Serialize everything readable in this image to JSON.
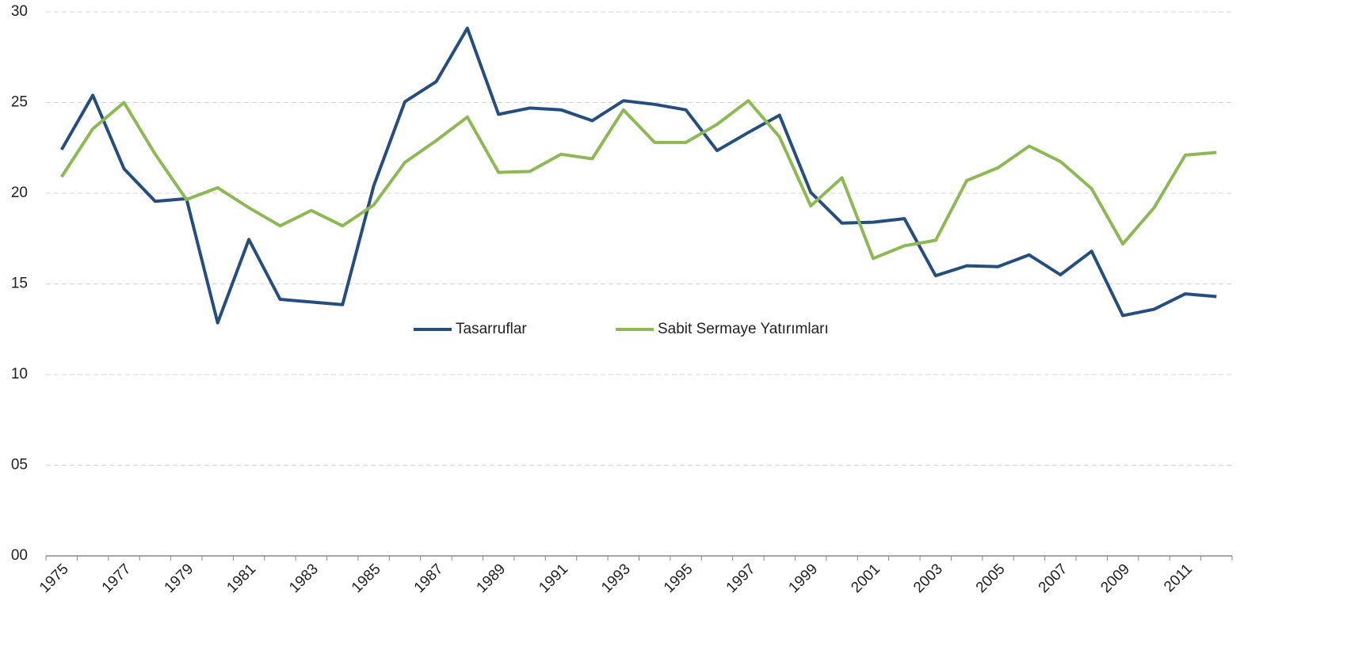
{
  "chart_data": {
    "type": "line",
    "categories": [
      "1975",
      null,
      "1977",
      null,
      "1979",
      null,
      "1981",
      null,
      "1983",
      null,
      "1985",
      null,
      "1987",
      null,
      "1989",
      null,
      "1991",
      null,
      "1993",
      null,
      "1995",
      null,
      "1997",
      null,
      "1999",
      null,
      "2001",
      null,
      "2003",
      null,
      "2005",
      null,
      "2007",
      null,
      "2009",
      null,
      "2011",
      null
    ],
    "series": [
      {
        "name": "Tasarruflar",
        "color": "#254e7f",
        "values": [
          22.4,
          25.4,
          21.35,
          19.55,
          19.7,
          12.85,
          17.45,
          14.15,
          14.0,
          13.85,
          20.4,
          25.05,
          26.15,
          29.1,
          24.35,
          24.7,
          24.6,
          24.0,
          25.1,
          24.9,
          24.6,
          22.35,
          23.35,
          24.3,
          20.05,
          18.35,
          18.4,
          18.6,
          15.45,
          16.0,
          15.95,
          16.6,
          15.5,
          16.8,
          13.25,
          13.6,
          14.45,
          14.3
        ]
      },
      {
        "name": "Sabit Sermaye Yatırımları",
        "color": "#8db955",
        "values": [
          20.9,
          23.55,
          25.0,
          22.15,
          19.65,
          20.3,
          19.2,
          18.2,
          19.05,
          18.2,
          19.35,
          21.7,
          22.9,
          24.2,
          21.15,
          21.2,
          22.15,
          21.9,
          24.6,
          22.8,
          22.8,
          23.8,
          25.1,
          23.1,
          19.3,
          20.85,
          16.4,
          17.1,
          17.4,
          20.7,
          21.4,
          22.6,
          21.75,
          20.25,
          17.2,
          19.2,
          22.1,
          22.25
        ]
      }
    ],
    "ylim": [
      0,
      30
    ],
    "yticks": [
      {
        "value": 0,
        "label": "00"
      },
      {
        "value": 5,
        "label": "05"
      },
      10,
      15,
      20,
      25,
      30
    ],
    "grid": true,
    "legend": "center"
  }
}
